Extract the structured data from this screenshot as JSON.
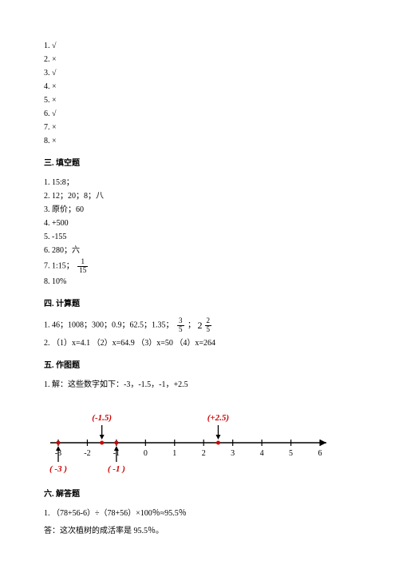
{
  "judge": {
    "items": [
      "1. √",
      "2. ×",
      "3. √",
      "4. ×",
      "5. ×",
      "6. √",
      "7. ×",
      "8. ×"
    ]
  },
  "s3": {
    "title": "三. 填空题",
    "i1": "1. 15:8；",
    "i2": "2. 12；20；8；八",
    "i3": "3. 原价；60",
    "i4": "4. +500",
    "i5": "5. -155",
    "i6": "6. 280；六",
    "i7_pre": "7. 1:15；",
    "i7_num": "1",
    "i7_den": "15",
    "i8": "8. 10%"
  },
  "s4": {
    "title": "四. 计算题",
    "l1_pre": "1. 46；1008；300；0.9；62.5；1.35；",
    "f1_num": "3",
    "f1_den": "5",
    "sep": "；",
    "mixed_int": "2",
    "f2_num": "2",
    "f2_den": "5",
    "l2": "2. （1）x=4.1 （2）x=64.9 （3）x=50 （4）x=264"
  },
  "s5": {
    "title": "五. 作图题",
    "i1": "1. 解：这些数字如下：-3，-1.5，-1，+2.5"
  },
  "nline": {
    "ticks": [
      -3,
      -2,
      -1,
      0,
      1,
      2,
      3,
      4,
      5,
      6
    ],
    "tick_color": "#000000",
    "axis_color": "#000000",
    "points_top": [
      {
        "x": -1.5,
        "label": "(-1.5)",
        "color": "#d00000"
      },
      {
        "x": 2.5,
        "label": "(+2.5)",
        "color": "#d00000"
      }
    ],
    "points_bottom": [
      {
        "x": -3,
        "label": "( -3 )",
        "color": "#d00000"
      },
      {
        "x": -1,
        "label": "( -1 )",
        "color": "#d00000"
      }
    ],
    "dot_color": "#d00000"
  },
  "s6": {
    "title": "六. 解答题",
    "i1": "1. （78+56-6）÷（78+56）×100％≈95.5％",
    "i2": "答：这次植树的成活率是 95.5％。"
  }
}
